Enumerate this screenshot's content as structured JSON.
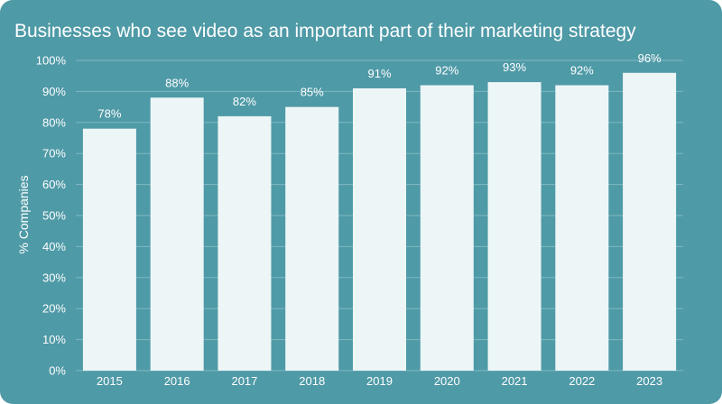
{
  "chart_data": {
    "type": "bar",
    "title": "Businesses who see video as an important part of their marketing strategy",
    "xlabel": "",
    "ylabel": "% Companies",
    "categories": [
      "2015",
      "2016",
      "2017",
      "2018",
      "2019",
      "2020",
      "2021",
      "2022",
      "2023"
    ],
    "values": [
      78,
      88,
      82,
      85,
      91,
      92,
      93,
      92,
      96
    ],
    "value_labels": [
      "78%",
      "88%",
      "82%",
      "85%",
      "91%",
      "92%",
      "93%",
      "92%",
      "96%"
    ],
    "ylim": [
      0,
      100
    ],
    "yticks": [
      "0%",
      "10%",
      "20%",
      "30%",
      "40%",
      "50%",
      "60%",
      "70%",
      "80%",
      "90%",
      "100%"
    ],
    "grid": true,
    "legend": "none"
  },
  "colors": {
    "background": "#4f9aa7",
    "bar": "#edf6f7",
    "grid": "#7fb8c2",
    "text": "#ffffff"
  }
}
